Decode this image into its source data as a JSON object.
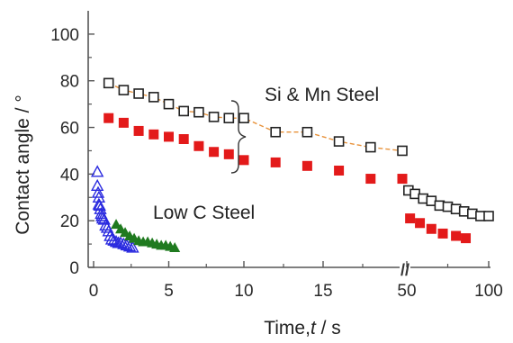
{
  "chart_data": {
    "type": "scatter",
    "xlabel_text": "Time,",
    "xlabel_var": "t",
    "xlabel_unit": " / s",
    "ylabel": "Contact angle / °",
    "ylim": [
      0,
      110
    ],
    "yticks": [
      0,
      20,
      40,
      60,
      80,
      100
    ],
    "x_segments": [
      {
        "range": [
          0,
          10
        ],
        "ticks": [
          0,
          5,
          10
        ]
      },
      {
        "range": [
          10,
          20
        ],
        "ticks": [
          15
        ]
      },
      {
        "range": [
          50,
          100
        ],
        "ticks": [
          50,
          100
        ]
      }
    ],
    "axis_break": "//",
    "grid": false,
    "annotations": [
      "Si & Mn Steel",
      "Low C Steel"
    ],
    "series": [
      {
        "marker": "open-square",
        "color": "#222222",
        "line_color": "#e8923a",
        "x": [
          1,
          2,
          3,
          4,
          5,
          6,
          7,
          8,
          9,
          10,
          12,
          14,
          16,
          18,
          20,
          51,
          55,
          60,
          65,
          70,
          75,
          80,
          85,
          90,
          95,
          100
        ],
        "y": [
          79,
          76,
          74.5,
          73,
          70,
          67,
          66.5,
          64.5,
          64,
          64,
          58,
          58,
          54,
          51.5,
          50,
          33,
          31.5,
          29.5,
          28.5,
          26.5,
          26,
          25,
          24,
          23,
          22,
          22
        ]
      },
      {
        "marker": "filled-square",
        "color": "#e31a1a",
        "x": [
          1,
          2,
          3,
          4,
          5,
          6,
          7,
          8,
          9,
          10,
          12,
          14,
          16,
          18,
          20,
          52,
          58,
          65,
          72,
          80,
          86
        ],
        "y": [
          64,
          62,
          58.5,
          57,
          56,
          55,
          52,
          49.5,
          48.5,
          46,
          45,
          43.5,
          41.5,
          38,
          38,
          21,
          19,
          16.5,
          14.5,
          13.5,
          12.5
        ]
      },
      {
        "marker": "open-triangle",
        "color": "#2a2adf",
        "x": [
          0.25,
          0.25,
          0.3,
          0.35,
          0.35,
          0.4,
          0.45,
          0.5,
          0.55,
          0.6,
          0.7,
          0.8,
          0.9,
          1.0,
          1.1,
          1.2,
          1.35,
          1.5,
          1.65,
          1.8,
          2.0,
          2.2,
          2.4,
          2.6
        ],
        "y": [
          41,
          35,
          32,
          30,
          27,
          26.5,
          25,
          23,
          22,
          21,
          20.5,
          18,
          17,
          15.5,
          13.5,
          12,
          11.5,
          11,
          10.5,
          10.5,
          10,
          9.5,
          9,
          8.5
        ]
      },
      {
        "marker": "filled-triangle",
        "color": "#1f7a1f",
        "x": [
          1.5,
          1.8,
          2.1,
          2.4,
          2.7,
          3.0,
          3.3,
          3.6,
          3.9,
          4.2,
          4.5,
          4.8,
          5.1,
          5.4
        ],
        "y": [
          18.5,
          16.5,
          15,
          13.5,
          12.5,
          11.5,
          11,
          11,
          10.5,
          10,
          9.5,
          9.5,
          9,
          8.5
        ]
      }
    ]
  }
}
